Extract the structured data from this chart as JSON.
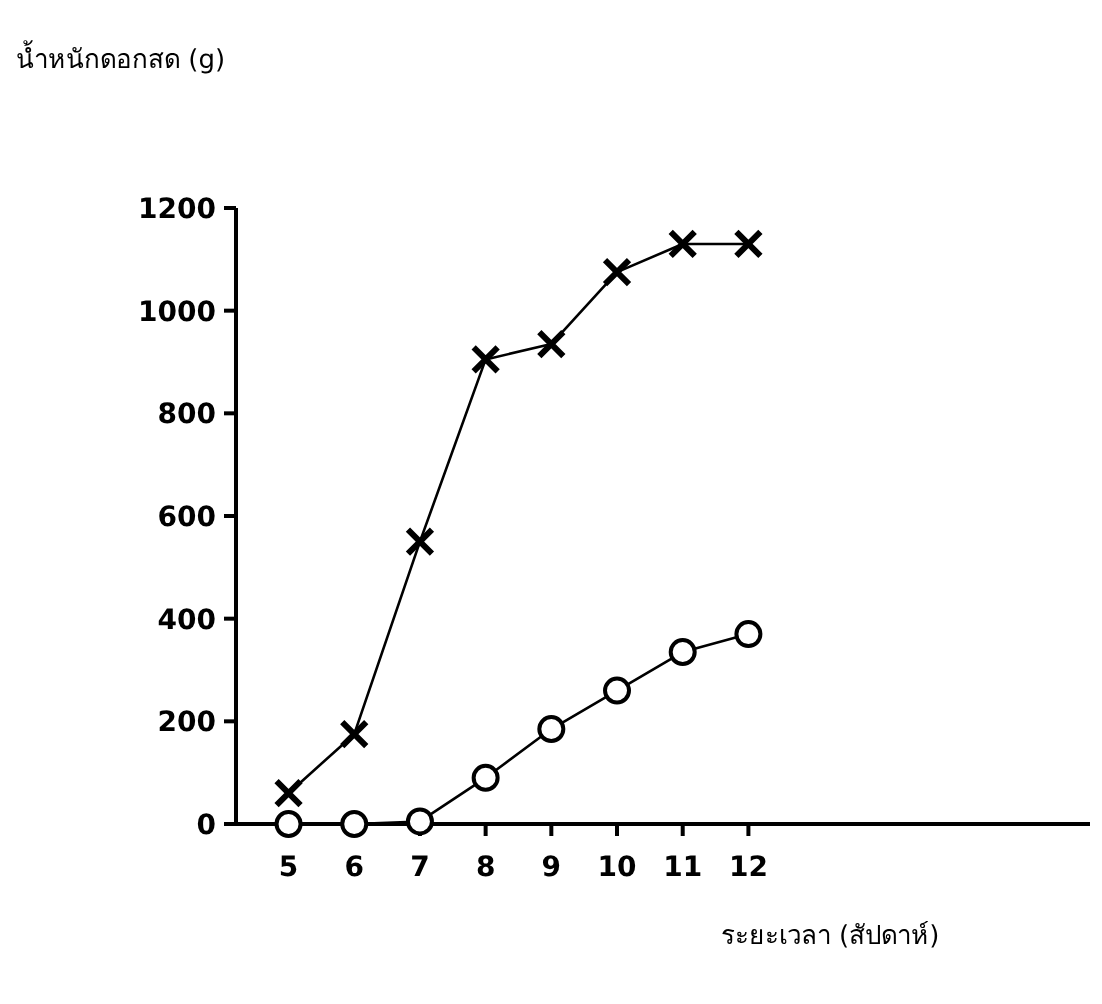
{
  "chart_data": {
    "type": "line",
    "ylabel": "น้ำหนักดอกสด (g)",
    "xlabel": "ระยะเวลา (สัปดาห์)",
    "x": [
      5,
      6,
      7,
      8,
      9,
      10,
      11,
      12
    ],
    "xlim": [
      4.2,
      17.2
    ],
    "xticks": [
      5,
      6,
      7,
      8,
      9,
      10,
      11,
      12
    ],
    "ylim": [
      0,
      1200
    ],
    "yticks": [
      0,
      200,
      400,
      600,
      800,
      1000,
      1200
    ],
    "grid": false,
    "line_style": "solid",
    "series": [
      {
        "color": "#000000",
        "marker": "cross",
        "values": [
          60,
          175,
          550,
          905,
          935,
          1075,
          1130,
          1130
        ]
      },
      {
        "color": "#000000",
        "marker": "circle",
        "values": [
          0,
          0,
          5,
          90,
          185,
          260,
          335,
          370
        ]
      }
    ]
  }
}
